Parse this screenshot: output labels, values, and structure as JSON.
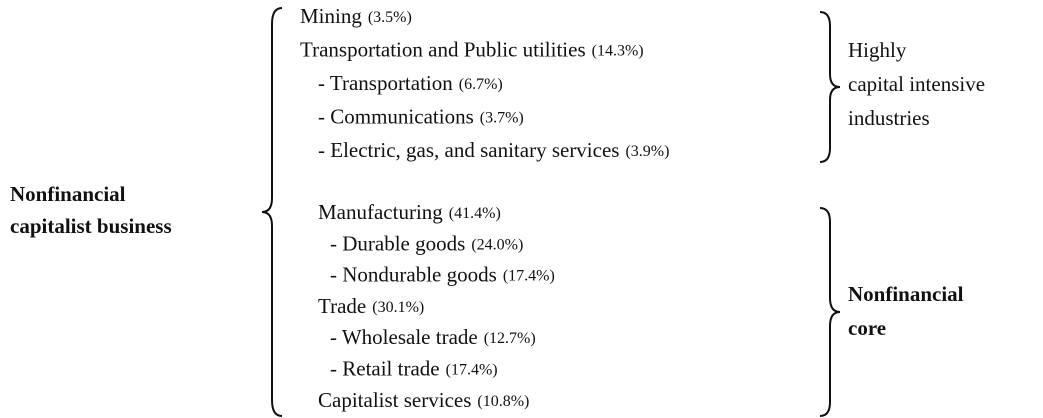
{
  "root": {
    "lines": [
      "Nonfinancial",
      "capitalist business"
    ]
  },
  "groups": [
    {
      "label": [
        "Highly",
        "capital intensive",
        "industries"
      ],
      "label_bold": false,
      "items": [
        {
          "name": "Mining",
          "share": "(3.5%)"
        },
        {
          "name": "Transportation and Public utilities",
          "share": "(14.3%)",
          "children": [
            {
              "name": "- Transportation",
              "share": "(6.7%)"
            },
            {
              "name": "- Communications",
              "share": "(3.7%)"
            },
            {
              "name": "- Electric, gas, and sanitary services",
              "share": "(3.9%)"
            }
          ]
        }
      ]
    },
    {
      "label": [
        "Nonfinancial",
        "core"
      ],
      "label_bold": true,
      "items": [
        {
          "name": "Manufacturing",
          "share": "(41.4%)",
          "children": [
            {
              "name": "- Durable goods",
              "share": "(24.0%)"
            },
            {
              "name": "- Nondurable goods",
              "share": "(17.4%)"
            }
          ]
        },
        {
          "name": "Trade",
          "share": "(30.1%)",
          "children": [
            {
              "name": "- Wholesale trade",
              "share": "(12.7%)"
            },
            {
              "name": "- Retail trade",
              "share": "(17.4%)"
            }
          ]
        },
        {
          "name": "Capitalist services",
          "share": "(10.8%)"
        }
      ]
    }
  ]
}
